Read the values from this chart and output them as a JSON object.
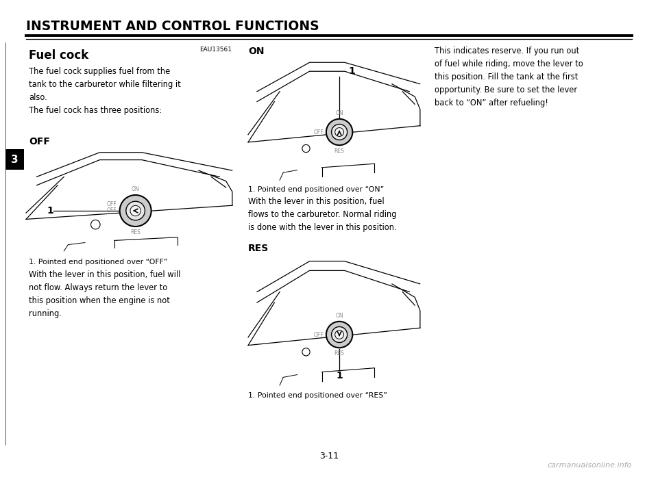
{
  "page_title": "INSTRUMENT AND CONTROL FUNCTIONS",
  "section_id": "EAU13561",
  "chapter_num": "3",
  "page_num": "3-11",
  "watermark": "carmanualsonline.info",
  "heading": "Fuel cock",
  "intro_text": "The fuel cock supplies fuel from the\ntank to the carburetor while filtering it\nalso.\nThe fuel cock has three positions:",
  "section_off_label": "OFF",
  "section_on_label": "ON",
  "section_res_label": "RES",
  "caption_off": "1. Pointed end positioned over “OFF”",
  "caption_on": "1. Pointed end positioned over “ON”",
  "caption_res": "1. Pointed end positioned over “RES”",
  "text_off": "With the lever in this position, fuel will\nnot flow. Always return the lever to\nthis position when the engine is not\nrunning.",
  "text_on": "With the lever in this position, fuel\nflows to the carburetor. Normal riding\nis done with the lever in this position.",
  "text_res": "This indicates reserve. If you run out\nof fuel while riding, move the lever to\nthis position. Fill the tank at the first\nopportunity. Be sure to set the lever\nback to “ON” after refueling!",
  "bg_color": "#ffffff",
  "text_color": "#000000",
  "line_color": "#000000",
  "chapter_box_color": "#000000",
  "chapter_text_color": "#ffffff"
}
